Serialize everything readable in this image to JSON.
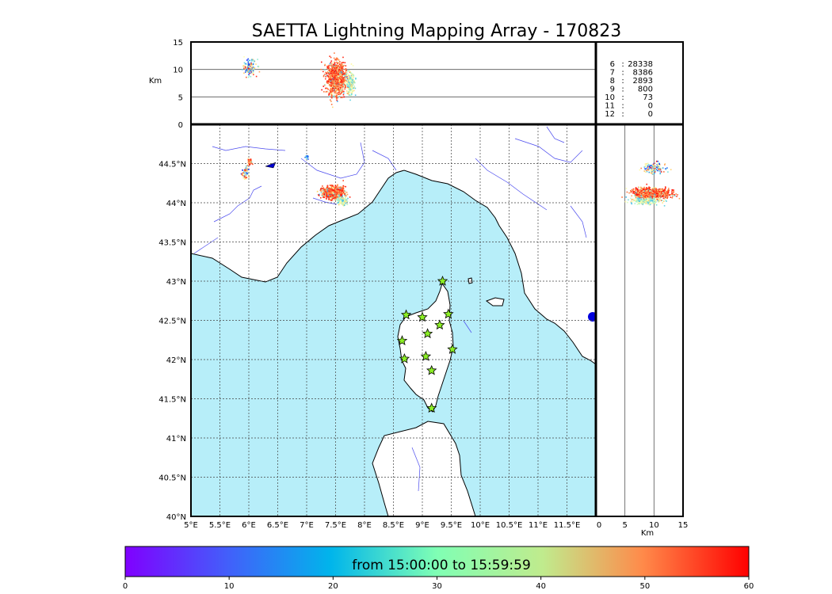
{
  "title": "SAETTA Lightning Mapping Array - 170823",
  "colors": {
    "sea": "#b7eef9",
    "land": "#ffffff",
    "rivers": "#4a4aee",
    "grid": "#333333",
    "station_fill": "#8cf025"
  },
  "chart_data": [
    {
      "panel": "altitude-vs-longitude",
      "type": "scatter",
      "ylabel": "Km",
      "xlim": [
        5,
        12.5
      ],
      "ylim": [
        0,
        15
      ],
      "yticks": [
        "0",
        "5",
        "10",
        "15"
      ],
      "clusters": [
        {
          "lon": 6.0,
          "alt": 10.5,
          "lon_spread": 0.12,
          "alt_spread": 1.5,
          "n": 140,
          "color_bias": "mixed"
        },
        {
          "lon": 7.5,
          "alt": 8.5,
          "lon_spread": 0.15,
          "alt_spread": 2.8,
          "n": 1300,
          "color_bias": "late"
        },
        {
          "lon": 7.75,
          "alt": 7.5,
          "lon_spread": 0.07,
          "alt_spread": 2.0,
          "n": 250,
          "color_bias": "mid"
        }
      ]
    },
    {
      "panel": "altitude-stats",
      "type": "table",
      "rows": [
        {
          "level": "6",
          "count": "28338"
        },
        {
          "level": "7",
          "count": "8386",
          "highlight": "#ff0000"
        },
        {
          "level": "8",
          "count": "2893"
        },
        {
          "level": "9",
          "count": "800"
        },
        {
          "level": "10",
          "count": "73"
        },
        {
          "level": "11",
          "count": "0"
        },
        {
          "level": "12",
          "count": "0"
        }
      ]
    },
    {
      "panel": "plan-view-map",
      "type": "scatter",
      "xlim": [
        5,
        12
      ],
      "ylim": [
        40,
        45
      ],
      "xticks": [
        "5°E",
        "5.5°E",
        "6°E",
        "6.5°E",
        "7°E",
        "7.5°E",
        "8°E",
        "8.5°E",
        "9°E",
        "9.5°E",
        "10°E",
        "10.5°E",
        "11°E",
        "11.5°E"
      ],
      "yticks": [
        "40°N",
        "40.5°N",
        "41°N",
        "41.5°N",
        "42°N",
        "42.5°N",
        "43°N",
        "43.5°N",
        "44°N",
        "44.5°N"
      ],
      "stations": [
        {
          "lon": 9.35,
          "lat": 43.0
        },
        {
          "lon": 8.72,
          "lat": 42.57
        },
        {
          "lon": 9.0,
          "lat": 42.54
        },
        {
          "lon": 9.45,
          "lat": 42.58
        },
        {
          "lon": 9.09,
          "lat": 42.33
        },
        {
          "lon": 9.3,
          "lat": 42.44
        },
        {
          "lon": 8.65,
          "lat": 42.24
        },
        {
          "lon": 9.52,
          "lat": 42.13
        },
        {
          "lon": 8.69,
          "lat": 42.01
        },
        {
          "lon": 9.06,
          "lat": 42.04
        },
        {
          "lon": 9.16,
          "lat": 41.86
        },
        {
          "lon": 9.16,
          "lat": 41.38
        }
      ],
      "clusters": [
        {
          "lon": 7.45,
          "lat": 44.14,
          "lon_spread": 0.18,
          "lat_spread": 0.07,
          "n": 900,
          "color_bias": "late"
        },
        {
          "lon": 7.6,
          "lat": 44.03,
          "lon_spread": 0.08,
          "lat_spread": 0.05,
          "n": 200,
          "color_bias": "mid"
        },
        {
          "lon": 5.93,
          "lat": 44.38,
          "lon_spread": 0.06,
          "lat_spread": 0.08,
          "n": 60,
          "color_bias": "mixed"
        },
        {
          "lon": 6.0,
          "lat": 44.52,
          "lon_spread": 0.04,
          "lat_spread": 0.04,
          "n": 40,
          "color_bias": "late"
        },
        {
          "lon": 7.0,
          "lat": 44.59,
          "lon_spread": 0.03,
          "lat_spread": 0.02,
          "n": 15,
          "color_bias": "early"
        }
      ]
    },
    {
      "panel": "latitude-vs-altitude",
      "type": "scatter",
      "xlabel": "Km",
      "xlim": [
        0,
        15
      ],
      "xticks": [
        "0",
        "5",
        "10",
        "15"
      ],
      "clusters": [
        {
          "alt": 9.5,
          "lat": 44.13,
          "alt_spread": 3.0,
          "lat_spread": 0.06,
          "n": 1100,
          "color_bias": "late"
        },
        {
          "alt": 8.5,
          "lat": 44.03,
          "alt_spread": 2.5,
          "lat_spread": 0.04,
          "n": 250,
          "color_bias": "mid"
        },
        {
          "alt": 10.0,
          "lat": 44.45,
          "alt_spread": 2.0,
          "lat_spread": 0.07,
          "n": 120,
          "color_bias": "mixed"
        }
      ]
    },
    {
      "panel": "time-colorbar",
      "type": "colorbar",
      "label": "from 15:00:00 to 15:59:59",
      "range": [
        0,
        60
      ],
      "ticks": [
        "0",
        "10",
        "20",
        "30",
        "40",
        "50",
        "60"
      ],
      "colormap": "rainbow"
    }
  ]
}
